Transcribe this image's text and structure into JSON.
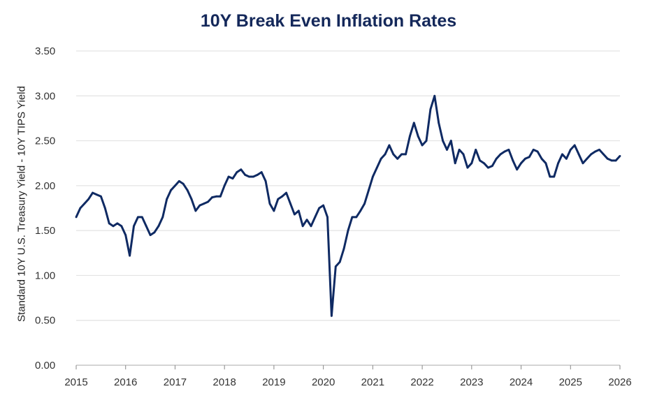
{
  "chart_data": {
    "type": "line",
    "title": "10Y Break Even Inflation Rates",
    "xlabel": "",
    "ylabel": "Standard 10Y U.S. Treasury Yield - 10Y TIPS Yield",
    "ylim": [
      0,
      3.5
    ],
    "xlim": [
      "2015-01",
      "2026-01"
    ],
    "yticks": [
      "0.00",
      "0.50",
      "1.00",
      "1.50",
      "2.00",
      "2.50",
      "3.00",
      "3.50"
    ],
    "xticks": [
      "2015",
      "2016",
      "2017",
      "2018",
      "2019",
      "2020",
      "2021",
      "2022",
      "2023",
      "2024",
      "2025",
      "2026"
    ],
    "grid": true,
    "legend": "none",
    "color": "#0f2a63",
    "series": [
      {
        "x": [
          "2015-01",
          "2015-02",
          "2015-03",
          "2015-04",
          "2015-05",
          "2015-06",
          "2015-07",
          "2015-08",
          "2015-09",
          "2015-10",
          "2015-11",
          "2015-12",
          "2016-01",
          "2016-02",
          "2016-03",
          "2016-04",
          "2016-05",
          "2016-06",
          "2016-07",
          "2016-08",
          "2016-09",
          "2016-10",
          "2016-11",
          "2016-12",
          "2017-01",
          "2017-02",
          "2017-03",
          "2017-04",
          "2017-05",
          "2017-06",
          "2017-07",
          "2017-08",
          "2017-09",
          "2017-10",
          "2017-11",
          "2017-12",
          "2018-01",
          "2018-02",
          "2018-03",
          "2018-04",
          "2018-05",
          "2018-06",
          "2018-07",
          "2018-08",
          "2018-09",
          "2018-10",
          "2018-11",
          "2018-12",
          "2019-01",
          "2019-02",
          "2019-03",
          "2019-04",
          "2019-05",
          "2019-06",
          "2019-07",
          "2019-08",
          "2019-09",
          "2019-10",
          "2019-11",
          "2019-12",
          "2020-01",
          "2020-02",
          "2020-03",
          "2020-04",
          "2020-05",
          "2020-06",
          "2020-07",
          "2020-08",
          "2020-09",
          "2020-10",
          "2020-11",
          "2020-12",
          "2021-01",
          "2021-02",
          "2021-03",
          "2021-04",
          "2021-05",
          "2021-06",
          "2021-07",
          "2021-08",
          "2021-09",
          "2021-10",
          "2021-11",
          "2021-12",
          "2022-01",
          "2022-02",
          "2022-03",
          "2022-04",
          "2022-05",
          "2022-06",
          "2022-07",
          "2022-08",
          "2022-09",
          "2022-10",
          "2022-11",
          "2022-12",
          "2023-01",
          "2023-02",
          "2023-03",
          "2023-04",
          "2023-05",
          "2023-06",
          "2023-07",
          "2023-08",
          "2023-09",
          "2023-10",
          "2023-11",
          "2023-12",
          "2024-01",
          "2024-02",
          "2024-03",
          "2024-04",
          "2024-05",
          "2024-06",
          "2024-07",
          "2024-08",
          "2024-09",
          "2024-10",
          "2024-11",
          "2024-12",
          "2025-01",
          "2025-02",
          "2025-03",
          "2025-04",
          "2025-05",
          "2025-06",
          "2025-07",
          "2025-08",
          "2025-09",
          "2025-10",
          "2025-11",
          "2025-12",
          "2026-01"
        ],
        "values": [
          1.65,
          1.75,
          1.8,
          1.85,
          1.92,
          1.9,
          1.88,
          1.75,
          1.58,
          1.55,
          1.58,
          1.55,
          1.45,
          1.22,
          1.55,
          1.65,
          1.65,
          1.55,
          1.45,
          1.48,
          1.55,
          1.65,
          1.85,
          1.95,
          2.0,
          2.05,
          2.02,
          1.95,
          1.85,
          1.72,
          1.78,
          1.8,
          1.82,
          1.87,
          1.88,
          1.88,
          2.0,
          2.1,
          2.08,
          2.15,
          2.18,
          2.12,
          2.1,
          2.1,
          2.12,
          2.15,
          2.05,
          1.8,
          1.72,
          1.85,
          1.88,
          1.92,
          1.8,
          1.68,
          1.72,
          1.55,
          1.62,
          1.55,
          1.65,
          1.75,
          1.78,
          1.65,
          0.55,
          1.1,
          1.15,
          1.3,
          1.5,
          1.65,
          1.65,
          1.72,
          1.8,
          1.95,
          2.1,
          2.2,
          2.3,
          2.35,
          2.45,
          2.35,
          2.3,
          2.35,
          2.35,
          2.55,
          2.7,
          2.55,
          2.45,
          2.5,
          2.85,
          3.0,
          2.7,
          2.5,
          2.4,
          2.5,
          2.25,
          2.4,
          2.35,
          2.2,
          2.25,
          2.4,
          2.28,
          2.25,
          2.2,
          2.22,
          2.3,
          2.35,
          2.38,
          2.4,
          2.28,
          2.18,
          2.25,
          2.3,
          2.32,
          2.4,
          2.38,
          2.3,
          2.25,
          2.1,
          2.1,
          2.25,
          2.35,
          2.3,
          2.4,
          2.45,
          2.35,
          2.25,
          2.3,
          2.35,
          2.38,
          2.4,
          2.35,
          2.3,
          2.28,
          2.28,
          2.33
        ]
      }
    ]
  }
}
